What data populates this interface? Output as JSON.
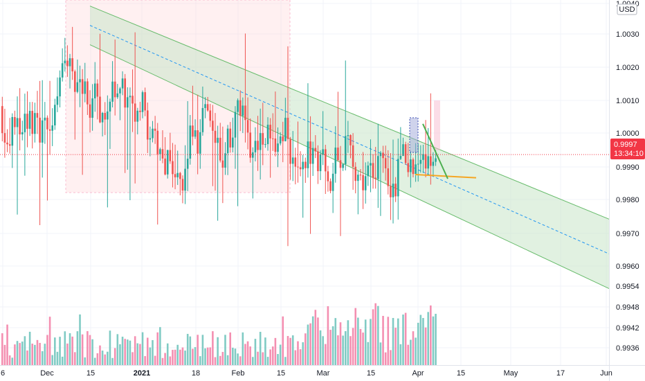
{
  "chart_data": {
    "type": "candlestick",
    "instrument_currency": "USD",
    "colors": {
      "up": "#26a69a",
      "down": "#ef5350",
      "volume_up": "#80cbc4",
      "volume_down": "#f48fb1",
      "channel_fill": "#c8e6c9",
      "channel_edge": "#66bb6a",
      "midline": "#2196f3",
      "highlight_box": "#ffcdd2",
      "trend_orange": "#f5a623",
      "trend_green": "#4caf50",
      "current_price": "#f23645"
    },
    "y_axis": {
      "range": [
        0.99318,
        1.0044
      ],
      "tick_labels": [
        "1.0040",
        "1.0030",
        "1.0020",
        "1.0010",
        "1.0000",
        "0.9990",
        "0.9980",
        "0.9970",
        "0.9960",
        "0.9954",
        "0.9948",
        "0.9942",
        "0.9936"
      ]
    },
    "x_axis": {
      "tick_labels": [
        "6",
        "Dec",
        "15",
        "2021",
        "18",
        "Feb",
        "15",
        "Mar",
        "15",
        "Apr",
        "15",
        "May",
        "17",
        "Jun"
      ]
    },
    "current_price": {
      "value": "0.9997",
      "countdown": "13:34:10"
    },
    "seed": 1337,
    "candle_count": 174,
    "start_price": 1.0012,
    "channel": {
      "upper": [
        1.0043,
        0.9977
      ],
      "lower": [
        1.0031,
        0.99555
      ]
    },
    "trendlines": {
      "orange": [
        0.99908,
        0.99898
      ],
      "green": [
        1.00065,
        0.99895
      ]
    }
  }
}
